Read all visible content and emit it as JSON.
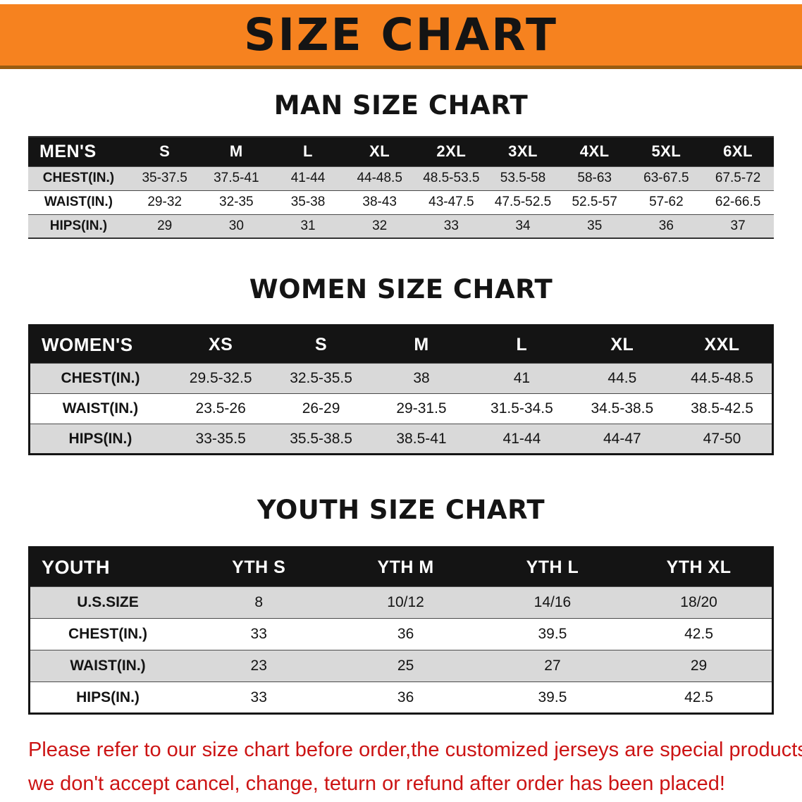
{
  "banner": {
    "title": "SIZE CHART"
  },
  "men": {
    "title": "MAN SIZE CHART",
    "header": [
      "MEN'S",
      "S",
      "M",
      "L",
      "XL",
      "2XL",
      "3XL",
      "4XL",
      "5XL",
      "6XL"
    ],
    "rows": [
      [
        "CHEST(IN.)",
        "35-37.5",
        "37.5-41",
        "41-44",
        "44-48.5",
        "48.5-53.5",
        "53.5-58",
        "58-63",
        "63-67.5",
        "67.5-72"
      ],
      [
        "WAIST(IN.)",
        "29-32",
        "32-35",
        "35-38",
        "38-43",
        "43-47.5",
        "47.5-52.5",
        "52.5-57",
        "57-62",
        "62-66.5"
      ],
      [
        "HIPS(IN.)",
        "29",
        "30",
        "31",
        "32",
        "33",
        "34",
        "35",
        "36",
        "37"
      ]
    ]
  },
  "women": {
    "title": "WOMEN SIZE CHART",
    "header": [
      "WOMEN'S",
      "XS",
      "S",
      "M",
      "L",
      "XL",
      "XXL"
    ],
    "rows": [
      [
        "CHEST(IN.)",
        "29.5-32.5",
        "32.5-35.5",
        "38",
        "41",
        "44.5",
        "44.5-48.5"
      ],
      [
        "WAIST(IN.)",
        "23.5-26",
        "26-29",
        "29-31.5",
        "31.5-34.5",
        "34.5-38.5",
        "38.5-42.5"
      ],
      [
        "HIPS(IN.)",
        "33-35.5",
        "35.5-38.5",
        "38.5-41",
        "41-44",
        "44-47",
        "47-50"
      ]
    ]
  },
  "youth": {
    "title": "YOUTH SIZE CHART",
    "header": [
      "YOUTH",
      "YTH S",
      "YTH M",
      "YTH L",
      "YTH XL"
    ],
    "rows": [
      [
        "U.S.SIZE",
        "8",
        "10/12",
        "14/16",
        "18/20"
      ],
      [
        "CHEST(IN.)",
        "33",
        "36",
        "39.5",
        "42.5"
      ],
      [
        "WAIST(IN.)",
        "23",
        "25",
        "27",
        "29"
      ],
      [
        "HIPS(IN.)",
        "33",
        "36",
        "39.5",
        "42.5"
      ]
    ]
  },
  "disclaimer": {
    "line1": "Please refer to our size chart before order,the customized jerseys are special products,",
    "line2": "we don't accept cancel, change, teturn or refund after order has been placed!"
  },
  "colors": {
    "banner_orange": "#f6821f",
    "table_header_bg": "#141414",
    "row_alt_gray": "#d9d9d9",
    "disclaimer_red": "#cc1414"
  }
}
